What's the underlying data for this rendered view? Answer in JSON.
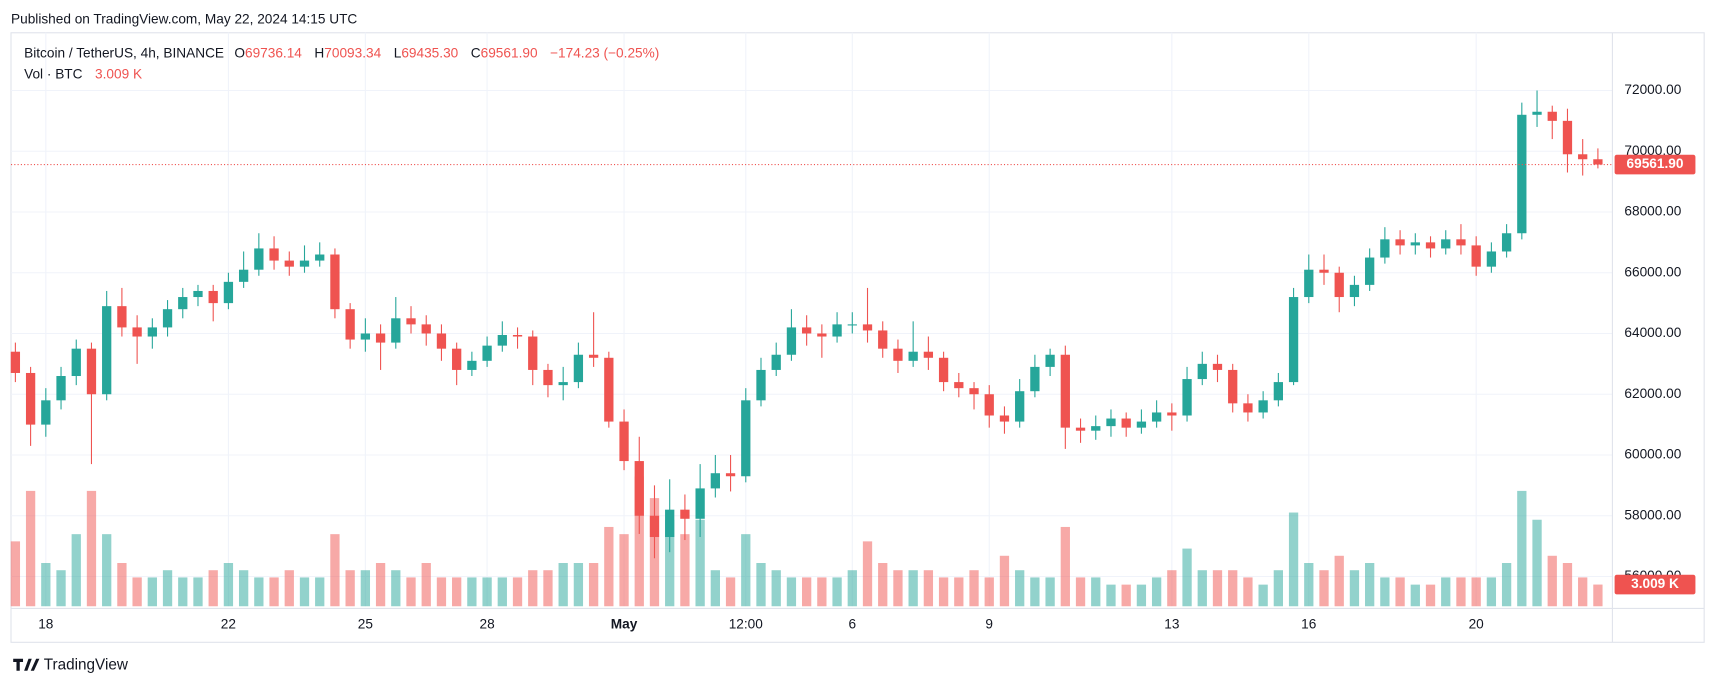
{
  "header": {
    "published": "Published on TradingView.com, May 22, 2024 14:15 UTC"
  },
  "footer": {
    "brand": "TradingView"
  },
  "chart_data": {
    "type": "candlestick",
    "title": "Bitcoin / TetherUS, 4h, BINANCE",
    "ohlc_prefixes": [
      "O",
      "H",
      "L",
      "C"
    ],
    "ohlc_labels": [
      "69736.14",
      "70093.34",
      "69435.30",
      "69561.90"
    ],
    "change_label": "−174.23 (−0.25%)",
    "up_color": "#26a69a",
    "down_color": "#ef5350",
    "grid": true,
    "categories": [
      null,
      null,
      "18",
      null,
      null,
      null,
      null,
      null,
      null,
      null,
      null,
      null,
      null,
      null,
      "22",
      null,
      null,
      null,
      null,
      null,
      null,
      null,
      null,
      "25",
      null,
      null,
      null,
      null,
      null,
      null,
      null,
      "28",
      null,
      null,
      null,
      null,
      null,
      null,
      null,
      null,
      "May",
      null,
      null,
      null,
      null,
      null,
      null,
      null,
      "12:00",
      null,
      null,
      null,
      null,
      null,
      null,
      "6",
      null,
      null,
      null,
      null,
      null,
      null,
      null,
      null,
      "9",
      null,
      null,
      null,
      null,
      null,
      null,
      null,
      null,
      null,
      null,
      null,
      "13",
      null,
      null,
      null,
      null,
      null,
      null,
      null,
      null,
      "16",
      null,
      null,
      null,
      null,
      null,
      null,
      null,
      null,
      null,
      null,
      "20",
      null,
      null,
      null,
      null,
      null,
      null,
      null,
      null
    ],
    "open": [
      63400,
      62700,
      61000,
      61800,
      62600,
      63500,
      62000,
      64900,
      64200,
      63900,
      64200,
      64800,
      65200,
      65400,
      65000,
      65700,
      66100,
      66800,
      66400,
      66200,
      66400,
      66600,
      64800,
      63800,
      64000,
      63700,
      64500,
      64300,
      64000,
      63500,
      62800,
      63100,
      63600,
      63950,
      63900,
      62800,
      62300,
      62400,
      63300,
      63200,
      61100,
      59800,
      58000,
      57300,
      58200,
      57900,
      58900,
      59400,
      59300,
      61800,
      62800,
      63300,
      64200,
      64000,
      63900,
      64300,
      64300,
      64100,
      63500,
      63100,
      63400,
      63200,
      62400,
      62200,
      62000,
      61300,
      61100,
      62100,
      62900,
      63300,
      60900,
      60800,
      60950,
      61200,
      60900,
      61100,
      61400,
      61300,
      62500,
      63000,
      62800,
      61700,
      61400,
      61800,
      62400,
      65200,
      66100,
      66000,
      65200,
      65600,
      66500,
      67100,
      66900,
      67000,
      66800,
      67100,
      66900,
      66200,
      66700,
      67300,
      71200,
      71300,
      71000,
      69900,
      69736.14
    ],
    "high": [
      63700,
      62900,
      62200,
      62900,
      63800,
      63700,
      65400,
      65500,
      64600,
      64500,
      65100,
      65500,
      65600,
      65600,
      66000,
      66700,
      67300,
      67200,
      66700,
      66900,
      67000,
      66800,
      65000,
      64500,
      64300,
      65200,
      64900,
      64600,
      64300,
      63700,
      63400,
      63900,
      64400,
      64200,
      64100,
      63000,
      62900,
      63700,
      64700,
      63400,
      61500,
      60600,
      59000,
      59200,
      58700,
      59700,
      60000,
      60000,
      62200,
      63200,
      63700,
      64800,
      64600,
      64300,
      64700,
      64700,
      65500,
      64400,
      63800,
      64400,
      63900,
      63400,
      62700,
      62400,
      62300,
      61600,
      62500,
      63300,
      63500,
      63600,
      61200,
      61300,
      61500,
      61400,
      61500,
      61800,
      61700,
      62900,
      63400,
      63300,
      63000,
      62000,
      62100,
      62700,
      65500,
      66600,
      66600,
      66200,
      65900,
      66800,
      67500,
      67400,
      67300,
      67200,
      67400,
      67600,
      67200,
      67000,
      67600,
      71600,
      72000,
      71500,
      71400,
      70400,
      70093.34
    ],
    "low": [
      62400,
      60300,
      60600,
      61500,
      62300,
      59700,
      61800,
      63900,
      63000,
      63500,
      63900,
      64500,
      64900,
      64400,
      64800,
      65500,
      65900,
      66100,
      65900,
      66000,
      66200,
      64500,
      63500,
      63400,
      62800,
      63500,
      64000,
      63600,
      63100,
      62300,
      62600,
      62900,
      63400,
      63500,
      62300,
      61900,
      61800,
      62200,
      62900,
      60900,
      59500,
      57400,
      56600,
      56800,
      57200,
      57300,
      58600,
      58800,
      59100,
      61600,
      62600,
      63100,
      63600,
      63200,
      63700,
      64000,
      63700,
      63200,
      62700,
      62900,
      62800,
      62100,
      61900,
      61500,
      60900,
      60700,
      60900,
      61900,
      62600,
      60200,
      60400,
      60500,
      60600,
      60600,
      60700,
      60900,
      60800,
      61100,
      62300,
      62400,
      61400,
      61100,
      61200,
      61600,
      62300,
      65000,
      65600,
      64700,
      64900,
      65400,
      66300,
      66600,
      66600,
      66500,
      66600,
      66600,
      65900,
      66000,
      66500,
      67100,
      70800,
      70400,
      69300,
      69200,
      69435.3
    ],
    "close": [
      62700,
      61000,
      61800,
      62600,
      63500,
      62000,
      64900,
      64200,
      63900,
      64200,
      64800,
      65200,
      65400,
      65000,
      65700,
      66100,
      66800,
      66400,
      66200,
      66400,
      66600,
      64800,
      63800,
      64000,
      63700,
      64500,
      64300,
      64000,
      63500,
      62800,
      63100,
      63600,
      63950,
      63900,
      62800,
      62300,
      62400,
      63300,
      63200,
      61100,
      59800,
      58000,
      57300,
      58200,
      57900,
      58900,
      59400,
      59300,
      61800,
      62800,
      63300,
      64200,
      64000,
      63900,
      64300,
      64300,
      64100,
      63500,
      63100,
      63400,
      63200,
      62400,
      62200,
      62000,
      61300,
      61100,
      62100,
      62900,
      63300,
      60900,
      60800,
      60950,
      61200,
      60900,
      61100,
      61400,
      61300,
      62500,
      63000,
      62800,
      61700,
      61400,
      61800,
      62400,
      65200,
      66100,
      66000,
      65200,
      65600,
      66500,
      67100,
      66900,
      67000,
      66800,
      67100,
      66900,
      66200,
      66700,
      67300,
      71200,
      71300,
      71000,
      69900,
      69736.14,
      69561.9
    ],
    "ylim": [
      55020,
      73900
    ],
    "yticks": [
      {
        "value": 56000,
        "label": "56000.00"
      },
      {
        "value": 58000,
        "label": "58000.00"
      },
      {
        "value": 60000,
        "label": "60000.00"
      },
      {
        "value": 62000,
        "label": "62000.00"
      },
      {
        "value": 64000,
        "label": "64000.00"
      },
      {
        "value": 66000,
        "label": "66000.00"
      },
      {
        "value": 68000,
        "label": "68000.00"
      },
      {
        "value": 70000,
        "label": "70000.00"
      },
      {
        "value": 72000,
        "label": "72000.00"
      }
    ],
    "volume": {
      "name": "Vol · BTC",
      "label": "3.009 K",
      "values": [
        9,
        16,
        6,
        5,
        10,
        16,
        10,
        6,
        4,
        4,
        5,
        4,
        4,
        5,
        6,
        5,
        4,
        4,
        5,
        4,
        4,
        10,
        5,
        5,
        6,
        5,
        4,
        6,
        4,
        4,
        4,
        4,
        4,
        4,
        5,
        5,
        6,
        6,
        6,
        11,
        10,
        18,
        15,
        12,
        10,
        12,
        5,
        4,
        10,
        6,
        5,
        4,
        4,
        4,
        4,
        5,
        9,
        6,
        5,
        5,
        5,
        4,
        4,
        5,
        4,
        7,
        5,
        4,
        4,
        11,
        4,
        4,
        3,
        3,
        3,
        4,
        5,
        8,
        5,
        5,
        5,
        4,
        3,
        5,
        13,
        6,
        5,
        7,
        5,
        6,
        4,
        4,
        3,
        3,
        4,
        4,
        4,
        4,
        6,
        16,
        12,
        7,
        6,
        4,
        3.009
      ]
    }
  }
}
